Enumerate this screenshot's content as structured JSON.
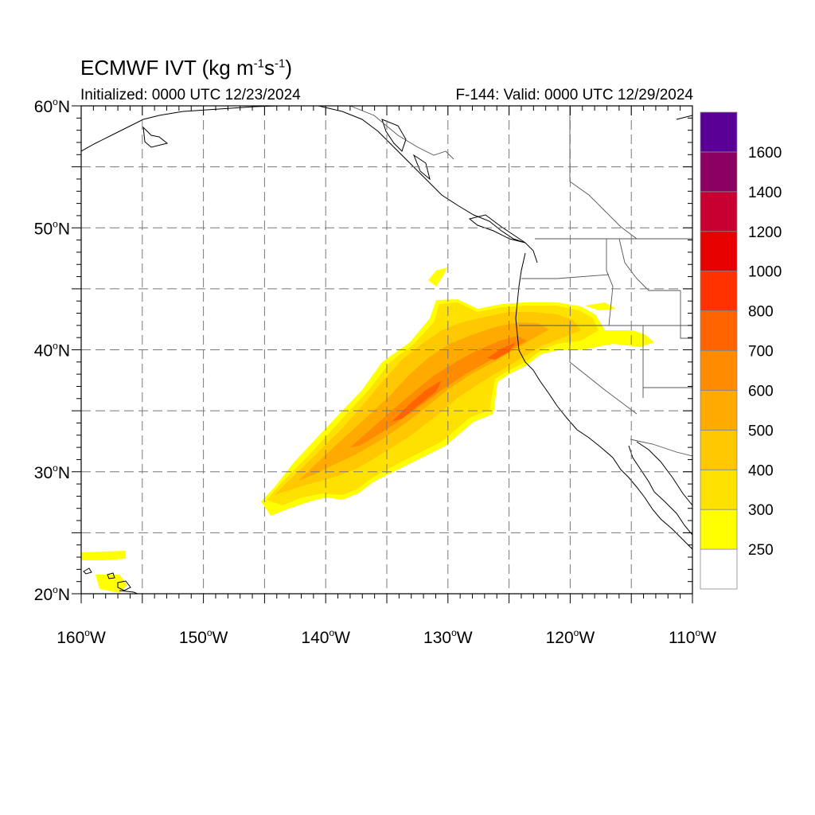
{
  "header": {
    "title": "ECMWF IVT (kg m",
    "title_exp1": "-1",
    "title_mid": "s",
    "title_exp2": "-1",
    "title_end": ")",
    "init_text": "Initialized: 0000 UTC 12/23/2024",
    "valid_text": "F-144: Valid: 0000 UTC 12/29/2024"
  },
  "map": {
    "projection": "cylindrical-equidistant",
    "lon_range": [
      -160,
      -110
    ],
    "lat_range": [
      20,
      60
    ],
    "grid": "dashed",
    "lat_ticks": [
      {
        "value": 20,
        "label": "20",
        "suffix": "N"
      },
      {
        "value": 30,
        "label": "30",
        "suffix": "N"
      },
      {
        "value": 40,
        "label": "40",
        "suffix": "N"
      },
      {
        "value": 50,
        "label": "50",
        "suffix": "N"
      },
      {
        "value": 60,
        "label": "60",
        "suffix": "N"
      }
    ],
    "lon_ticks": [
      {
        "value": -160,
        "label": "160",
        "suffix": "W"
      },
      {
        "value": -150,
        "label": "150",
        "suffix": "W"
      },
      {
        "value": -140,
        "label": "140",
        "suffix": "W"
      },
      {
        "value": -130,
        "label": "130",
        "suffix": "W"
      },
      {
        "value": -120,
        "label": "120",
        "suffix": "W"
      },
      {
        "value": -110,
        "label": "110",
        "suffix": "W"
      }
    ],
    "grid_lats": [
      25,
      30,
      35,
      40,
      45,
      50,
      55
    ],
    "grid_lons": [
      -155,
      -150,
      -145,
      -140,
      -135,
      -130,
      -125,
      -120,
      -115
    ]
  },
  "colorbar": {
    "levels": [
      "250",
      "300",
      "400",
      "500",
      "600",
      "700",
      "800",
      "1000",
      "1200",
      "1400",
      "1600"
    ],
    "colors": [
      "#ffffff",
      "#ffff00",
      "#ffe100",
      "#ffc800",
      "#ffaa00",
      "#ff8c00",
      "#ff6400",
      "#ff3200",
      "#e60000",
      "#c80032",
      "#8c0064",
      "#5a0096"
    ]
  },
  "ivt_plume": {
    "description_levels": [
      "250",
      "300",
      "400",
      "500",
      "600",
      "700"
    ],
    "landfall": "Northern California / Oregon border"
  }
}
